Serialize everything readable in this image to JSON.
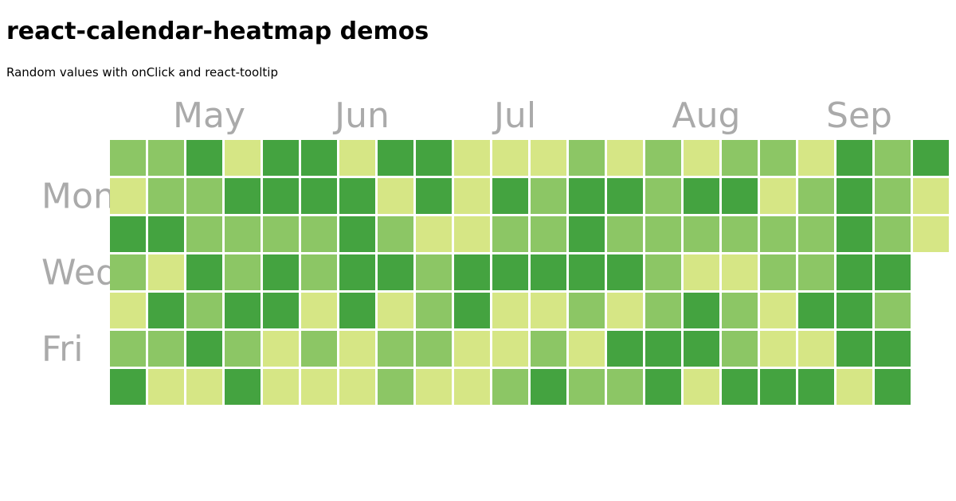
{
  "page": {
    "title": "react-calendar-heatmap demos",
    "subtitle": "Random values with onClick and react-tooltip"
  },
  "colors": {
    "scale": [
      "#d6e685",
      "#8cc665",
      "#44a340"
    ],
    "label": "#aaaaaa",
    "background": "#ffffff"
  },
  "heatmap": {
    "month_labels": [
      {
        "label": "May",
        "week": 2
      },
      {
        "label": "Jun",
        "week": 6
      },
      {
        "label": "Jul",
        "week": 10
      },
      {
        "label": "Aug",
        "week": 15
      },
      {
        "label": "Sep",
        "week": 19
      }
    ],
    "weekday_labels": [
      {
        "label": "Mon",
        "day": 1
      },
      {
        "label": "Wed",
        "day": 3
      },
      {
        "label": "Fri",
        "day": 5
      }
    ],
    "weeks": [
      [
        1,
        0,
        2,
        1,
        0,
        1,
        2
      ],
      [
        1,
        1,
        2,
        0,
        2,
        1,
        0
      ],
      [
        2,
        1,
        1,
        2,
        1,
        2,
        0
      ],
      [
        0,
        2,
        1,
        1,
        2,
        1,
        2
      ],
      [
        2,
        2,
        1,
        2,
        2,
        0,
        0
      ],
      [
        2,
        2,
        1,
        1,
        0,
        1,
        0
      ],
      [
        0,
        2,
        2,
        2,
        2,
        0,
        0
      ],
      [
        2,
        0,
        1,
        2,
        0,
        1,
        1
      ],
      [
        2,
        2,
        0,
        1,
        1,
        1,
        0
      ],
      [
        0,
        0,
        0,
        2,
        2,
        0,
        0
      ],
      [
        0,
        2,
        1,
        2,
        0,
        0,
        1
      ],
      [
        0,
        1,
        1,
        2,
        0,
        1,
        2
      ],
      [
        1,
        2,
        2,
        2,
        1,
        0,
        1
      ],
      [
        0,
        2,
        1,
        2,
        0,
        2,
        1
      ],
      [
        1,
        1,
        1,
        1,
        1,
        2,
        2
      ],
      [
        0,
        2,
        1,
        0,
        2,
        2,
        0
      ],
      [
        1,
        2,
        1,
        0,
        1,
        1,
        2
      ],
      [
        1,
        0,
        1,
        1,
        0,
        0,
        2
      ],
      [
        0,
        1,
        1,
        1,
        2,
        0,
        2
      ],
      [
        2,
        2,
        2,
        2,
        2,
        2,
        0
      ],
      [
        1,
        1,
        1,
        2,
        1,
        2,
        2
      ],
      [
        2,
        0,
        0
      ]
    ]
  }
}
